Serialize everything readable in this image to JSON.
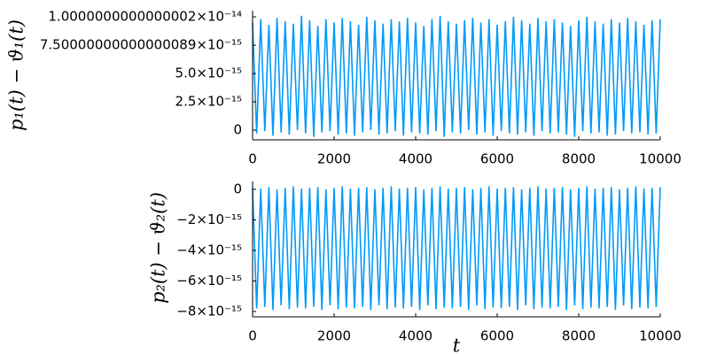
{
  "chart_data": [
    {
      "type": "line",
      "ylabel": "p₁(t) − ϑ₁(t)",
      "x": [
        0,
        100,
        200,
        300,
        400,
        500,
        600,
        700,
        800,
        900,
        1000,
        1100,
        1200,
        1300,
        1400,
        1500,
        1600,
        1700,
        1800,
        1900,
        2000,
        2100,
        2200,
        2300,
        2400,
        2500,
        2600,
        2700,
        2800,
        2900,
        3000,
        3100,
        3200,
        3300,
        3400,
        3500,
        3600,
        3700,
        3800,
        3900,
        4000,
        4100,
        4200,
        4300,
        4400,
        4500,
        4600,
        4700,
        4800,
        4900,
        5000,
        5100,
        5200,
        5300,
        5400,
        5500,
        5600,
        5700,
        5800,
        5900,
        6000,
        6100,
        6200,
        6300,
        6400,
        6500,
        6600,
        6700,
        6800,
        6900,
        7000,
        7100,
        7200,
        7300,
        7400,
        7500,
        7600,
        7700,
        7800,
        7900,
        8000,
        8100,
        8200,
        8300,
        8400,
        8500,
        8600,
        8700,
        8800,
        8900,
        9000,
        9100,
        9200,
        9300,
        9400,
        9500,
        9600,
        9700,
        9800,
        9900,
        10000
      ],
      "series": [
        {
          "color": "#009af9",
          "values": [
            9.5e-15,
            -3e-16,
            9.8e-15,
            -1e-16,
            9.3e-15,
            -5e-16,
            9.9e-15,
            -2e-16,
            9.6e-15,
            -4e-16,
            9.4e-15,
            0,
            1.01e-14,
            -3e-16,
            9.7e-15,
            -6e-16,
            9.2e-15,
            -2e-16,
            9.8e-15,
            -1e-16,
            9.5e-15,
            -4e-16,
            9.9e-15,
            -3e-16,
            9.6e-15,
            -5e-16,
            9.3e-15,
            -2e-16,
            1e-14,
            0,
            9.7e-15,
            -4e-16,
            9.4e-15,
            -3e-16,
            9.8e-15,
            -1e-16,
            9.6e-15,
            -5e-16,
            9.9e-15,
            -2e-16,
            9.5e-15,
            -3e-16,
            9.2e-15,
            -4e-16,
            9.8e-15,
            -1e-16,
            1.01e-14,
            -6e-16,
            9.6e-15,
            -2e-16,
            9.4e-15,
            -3e-16,
            9.7e-15,
            0,
            9.9e-15,
            -4e-16,
            9.5e-15,
            -2e-16,
            9.8e-15,
            -5e-16,
            9.3e-15,
            -1e-16,
            9.6e-15,
            -3e-16,
            1e-14,
            -4e-16,
            9.7e-15,
            -2e-16,
            9.4e-15,
            -5e-16,
            9.9e-15,
            -1e-16,
            9.6e-15,
            -3e-16,
            9.8e-15,
            -2e-16,
            9.5e-15,
            -4e-16,
            9.2e-15,
            -6e-16,
            9.7e-15,
            -1e-16,
            1e-14,
            -3e-16,
            9.6e-15,
            -2e-16,
            9.4e-15,
            -5e-16,
            9.8e-15,
            -4e-16,
            9.5e-15,
            -1e-16,
            9.9e-15,
            -3e-16,
            9.6e-15,
            -2e-16,
            9.3e-15,
            -4e-16,
            9.7e-15,
            -3e-16,
            9.8e-15
          ]
        }
      ],
      "xlim": [
        0,
        10000
      ],
      "xticks": [
        0,
        2000,
        4000,
        6000,
        8000,
        10000
      ],
      "ylim": [
        -8.6e-16,
        1.055e-14
      ],
      "yticks": [
        0,
        {
          "value": 2.5e-15,
          "label": "2.5×10⁻¹⁵"
        },
        {
          "value": 5e-15,
          "label": "5.0×10⁻¹⁵"
        },
        {
          "value": 7.500000000000001e-15,
          "label": "7.50000000000000089×10⁻¹⁵"
        },
        {
          "value": 1.0000000000000002e-14,
          "label": "1.0000000000000002×10⁻¹⁴"
        }
      ],
      "grid": false
    },
    {
      "type": "line",
      "ylabel": "p₂(t) − ϑ₂(t)",
      "xlabel": "t",
      "x": [
        0,
        100,
        200,
        300,
        400,
        500,
        600,
        700,
        800,
        900,
        1000,
        1100,
        1200,
        1300,
        1400,
        1500,
        1600,
        1700,
        1800,
        1900,
        2000,
        2100,
        2200,
        2300,
        2400,
        2500,
        2600,
        2700,
        2800,
        2900,
        3000,
        3100,
        3200,
        3300,
        3400,
        3500,
        3600,
        3700,
        3800,
        3900,
        4000,
        4100,
        4200,
        4300,
        4400,
        4500,
        4600,
        4700,
        4800,
        4900,
        5000,
        5100,
        5200,
        5300,
        5400,
        5500,
        5600,
        5700,
        5800,
        5900,
        6000,
        6100,
        6200,
        6300,
        6400,
        6500,
        6600,
        6700,
        6800,
        6900,
        7000,
        7100,
        7200,
        7300,
        7400,
        7500,
        7600,
        7700,
        7800,
        7900,
        8000,
        8100,
        8200,
        8300,
        8400,
        8500,
        8600,
        8700,
        8800,
        8900,
        9000,
        9100,
        9200,
        9300,
        9400,
        9500,
        9600,
        9700,
        9800,
        9900,
        10000
      ],
      "series": [
        {
          "color": "#009af9",
          "values": [
            1e-16,
            -7.8e-15,
            5e-17,
            -7.7e-15,
            1.5e-16,
            -7.9e-15,
            0,
            -7.6e-15,
            1e-16,
            -7.85e-15,
            2e-16,
            -7.75e-15,
            5e-17,
            -7.8e-15,
            1e-16,
            -7.7e-15,
            1.5e-16,
            -7.9e-15,
            0,
            -7.6e-15,
            1e-16,
            -7.85e-15,
            2e-16,
            -7.75e-15,
            5e-17,
            -7.8e-15,
            1e-16,
            -7.7e-15,
            1.5e-16,
            -7.9e-15,
            0,
            -7.6e-15,
            1e-16,
            -7.85e-15,
            2e-16,
            -7.75e-15,
            5e-17,
            -7.8e-15,
            1e-16,
            -7.7e-15,
            1.5e-16,
            -7.9e-15,
            0,
            -7.6e-15,
            1e-16,
            -7.85e-15,
            2e-16,
            -7.75e-15,
            5e-17,
            -7.8e-15,
            1e-16,
            -7.7e-15,
            1.5e-16,
            -7.9e-15,
            0,
            -7.6e-15,
            1e-16,
            -7.85e-15,
            2e-16,
            -7.75e-15,
            5e-17,
            -7.8e-15,
            1e-16,
            -7.7e-15,
            1.5e-16,
            -7.9e-15,
            0,
            -7.6e-15,
            1e-16,
            -7.85e-15,
            2e-16,
            -7.75e-15,
            5e-17,
            -7.8e-15,
            1e-16,
            -7.7e-15,
            1.5e-16,
            -7.9e-15,
            0,
            -7.6e-15,
            1e-16,
            -7.85e-15,
            2e-16,
            -7.75e-15,
            5e-17,
            -7.8e-15,
            1e-16,
            -7.7e-15,
            1.5e-16,
            -7.9e-15,
            0,
            -7.6e-15,
            1e-16,
            -7.85e-15,
            2e-16,
            -7.75e-15,
            5e-17,
            -7.8e-15,
            1e-16,
            -7.7e-15,
            1.5e-16
          ]
        }
      ],
      "xlim": [
        0,
        10000
      ],
      "xticks": [
        0,
        2000,
        4000,
        6000,
        8000,
        10000
      ],
      "ylim": [
        -8.35e-15,
        5.2e-16
      ],
      "yticks": [
        0,
        {
          "value": -2e-15,
          "label": "−2×10⁻¹⁵"
        },
        {
          "value": -4e-15,
          "label": "−4×10⁻¹⁵"
        },
        {
          "value": -6e-15,
          "label": "−6×10⁻¹⁵"
        },
        {
          "value": -8e-15,
          "label": "−8×10⁻¹⁵"
        }
      ],
      "grid": false
    }
  ]
}
